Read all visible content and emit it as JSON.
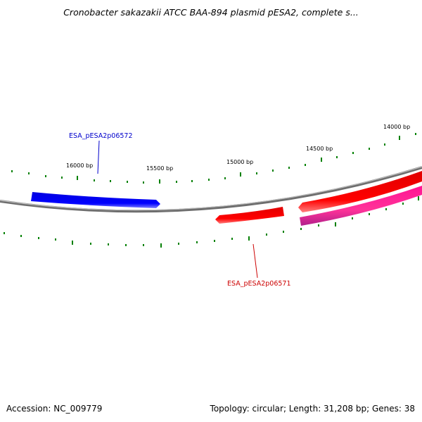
{
  "header": {
    "title": "Cronobacter sakazakii ATCC BAA-894 plasmid pESA2, complete s..."
  },
  "footer": {
    "accession": "Accession: NC_009779",
    "summary": "Topology: circular; Length: 31,208 bp; Genes: 38"
  },
  "map": {
    "tick_labels": [
      "16000 bp",
      "15500 bp",
      "15000 bp",
      "14500 bp",
      "14000 bp"
    ],
    "genes": [
      {
        "label": "ESA_pESA2p06572",
        "strand": "forward",
        "color": "#0000ff"
      },
      {
        "label": "ESA_pESA2p06571",
        "strand": "reverse",
        "color": "#ff0000"
      }
    ],
    "colors": {
      "backbone": "#808080",
      "ticks": "#008000",
      "forward_gene": "#0000ff",
      "reverse_gene": "#ff0000",
      "pink_gene": "#ff1493"
    }
  }
}
